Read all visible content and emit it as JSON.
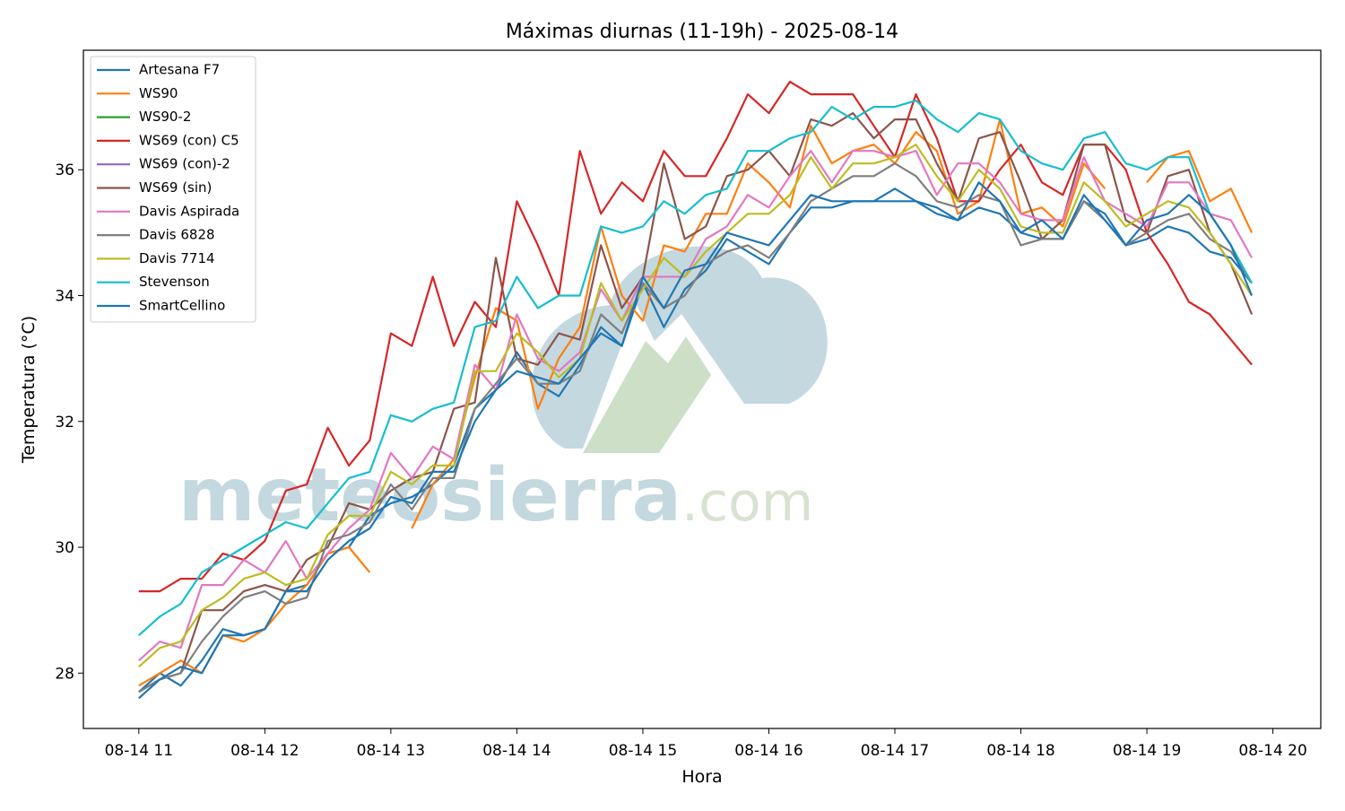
{
  "chart_data": {
    "type": "line",
    "title": "Máximas diurnas (11-19h) - 2025-08-14",
    "xlabel": "Hora",
    "ylabel": "Temperatura (°C)",
    "watermark": [
      "meteosierra",
      ".com"
    ],
    "legend": "upper left",
    "x": [
      11,
      11.167,
      11.333,
      11.5,
      11.667,
      11.833,
      12,
      12.167,
      12.333,
      12.5,
      12.667,
      12.833,
      13,
      13.167,
      13.333,
      13.5,
      13.667,
      13.833,
      14,
      14.167,
      14.333,
      14.5,
      14.667,
      14.833,
      15,
      15.167,
      15.333,
      15.5,
      15.667,
      15.833,
      16,
      16.167,
      16.333,
      16.5,
      16.667,
      16.833,
      17,
      17.167,
      17.333,
      17.5,
      17.667,
      17.833,
      18,
      18.167,
      18.333,
      18.5,
      18.667,
      18.833,
      19,
      19.167,
      19.333,
      19.5,
      19.667,
      19.833
    ],
    "xlim": [
      10.56,
      20.38
    ],
    "xticks": [
      {
        "value": 11,
        "label": "08-14 11"
      },
      {
        "value": 12,
        "label": "08-14 12"
      },
      {
        "value": 13,
        "label": "08-14 13"
      },
      {
        "value": 14,
        "label": "08-14 14"
      },
      {
        "value": 15,
        "label": "08-14 15"
      },
      {
        "value": 16,
        "label": "08-14 16"
      },
      {
        "value": 17,
        "label": "08-14 17"
      },
      {
        "value": 18,
        "label": "08-14 18"
      },
      {
        "value": 19,
        "label": "08-14 19"
      },
      {
        "value": 20,
        "label": "08-14 20"
      }
    ],
    "ylim": [
      27.12,
      37.9
    ],
    "yticks": [
      28,
      30,
      32,
      34,
      36
    ],
    "series": [
      {
        "name": "Artesana F7",
        "color": "#1f77b4",
        "values": [
          27.7,
          28.0,
          27.8,
          28.2,
          28.7,
          28.6,
          28.7,
          29.3,
          29.4,
          29.9,
          30.0,
          30.5,
          30.7,
          30.8,
          31.0,
          31.3,
          32.2,
          32.5,
          33.1,
          32.6,
          32.4,
          32.9,
          33.5,
          33.2,
          34.2,
          33.5,
          34.1,
          34.4,
          34.9,
          34.7,
          34.5,
          35.0,
          35.4,
          35.4,
          35.5,
          35.5,
          35.5,
          35.5,
          35.4,
          35.2,
          35.4,
          35.3,
          35.0,
          34.9,
          34.9,
          35.5,
          35.3,
          34.8,
          34.9,
          35.1,
          35.0,
          34.7,
          34.6,
          34.2
        ]
      },
      {
        "name": "WS90",
        "color": "#ff7f0e",
        "values": [
          27.8,
          28.0,
          28.2,
          28.0,
          28.6,
          28.5,
          28.7,
          29.1,
          29.4,
          29.9,
          30.0,
          29.6,
          null,
          30.3,
          31.0,
          31.4,
          32.7,
          33.8,
          33.6,
          32.2,
          33.0,
          33.5,
          35.1,
          34.0,
          33.6,
          34.8,
          34.7,
          35.3,
          35.3,
          36.1,
          35.8,
          35.4,
          36.7,
          36.1,
          36.3,
          36.4,
          36.1,
          36.6,
          36.3,
          35.3,
          35.5,
          36.8,
          35.3,
          35.4,
          35.1,
          36.1,
          35.7,
          null,
          35.8,
          36.2,
          36.3,
          35.5,
          35.7,
          35.0
        ]
      },
      {
        "name": "WS90-2",
        "color": "#2ca02c",
        "values": [
          null,
          null,
          null,
          null,
          null,
          null,
          null,
          null,
          null,
          null,
          null,
          null,
          null,
          null,
          null,
          null,
          null,
          null,
          null,
          null,
          null,
          null,
          null,
          null,
          null,
          null,
          null,
          null,
          null,
          null,
          null,
          null,
          null,
          null,
          null,
          null,
          null,
          null,
          null,
          null,
          null,
          null,
          null,
          null,
          null,
          null,
          null,
          null,
          null,
          null,
          null,
          null,
          null,
          null
        ]
      },
      {
        "name": "WS69 (con) C5",
        "color": "#d62728",
        "values": [
          29.3,
          29.3,
          29.5,
          29.5,
          29.9,
          29.8,
          30.1,
          30.9,
          31.0,
          31.9,
          31.3,
          31.7,
          33.4,
          33.2,
          34.3,
          33.2,
          33.9,
          33.5,
          35.5,
          34.8,
          34.0,
          36.3,
          35.3,
          35.8,
          35.5,
          36.3,
          35.9,
          35.9,
          36.5,
          37.2,
          36.9,
          37.4,
          37.2,
          37.2,
          37.2,
          36.7,
          36.2,
          37.2,
          36.5,
          35.5,
          35.5,
          36.0,
          36.4,
          35.8,
          35.6,
          36.4,
          36.4,
          36.0,
          35.0,
          34.5,
          33.9,
          33.7,
          33.3,
          32.9
        ]
      },
      {
        "name": "WS69 (con)-2",
        "color": "#9467bd",
        "values": [
          null,
          null,
          null,
          null,
          null,
          null,
          null,
          null,
          null,
          null,
          null,
          null,
          null,
          null,
          null,
          null,
          null,
          null,
          null,
          null,
          null,
          null,
          null,
          null,
          null,
          null,
          null,
          null,
          null,
          null,
          null,
          null,
          null,
          null,
          null,
          null,
          null,
          null,
          null,
          null,
          null,
          null,
          null,
          null,
          null,
          null,
          null,
          null,
          null,
          null,
          null,
          null,
          null,
          null
        ]
      },
      {
        "name": "WS69 (sin)",
        "color": "#8c564b",
        "values": [
          27.7,
          27.9,
          28.0,
          29.0,
          29.0,
          29.3,
          29.4,
          29.3,
          29.8,
          30.0,
          30.7,
          30.6,
          30.9,
          31.1,
          31.2,
          32.2,
          32.3,
          34.6,
          33.0,
          32.9,
          33.4,
          33.3,
          34.8,
          33.8,
          34.3,
          36.1,
          34.9,
          35.1,
          35.9,
          36.0,
          36.3,
          35.9,
          36.8,
          36.7,
          36.9,
          36.5,
          36.8,
          36.8,
          36.1,
          35.5,
          36.5,
          36.6,
          35.8,
          34.9,
          35.2,
          36.4,
          36.4,
          35.2,
          35.0,
          35.9,
          36.0,
          35.0,
          34.5,
          33.7
        ]
      },
      {
        "name": "Davis Aspirada",
        "color": "#e377c2",
        "values": [
          28.2,
          28.5,
          28.4,
          29.4,
          29.4,
          29.8,
          29.6,
          30.1,
          29.5,
          29.9,
          30.3,
          30.6,
          31.5,
          31.1,
          31.6,
          31.4,
          32.9,
          32.5,
          33.7,
          33.0,
          32.8,
          33.1,
          34.1,
          33.6,
          34.3,
          34.3,
          34.3,
          34.9,
          35.1,
          35.6,
          35.4,
          35.9,
          36.3,
          35.8,
          36.3,
          36.3,
          36.2,
          36.3,
          35.6,
          36.1,
          36.1,
          35.8,
          35.3,
          35.2,
          35.2,
          36.2,
          35.5,
          35.3,
          35.1,
          35.8,
          35.8,
          35.3,
          35.2,
          34.6
        ]
      },
      {
        "name": "Davis 6828",
        "color": "#7f7f7f",
        "values": [
          27.7,
          27.9,
          28.0,
          28.5,
          28.9,
          29.2,
          29.3,
          29.1,
          29.2,
          30.1,
          30.2,
          30.4,
          31.0,
          30.6,
          31.1,
          31.1,
          32.2,
          32.6,
          33.0,
          32.6,
          32.6,
          32.8,
          33.7,
          33.4,
          34.2,
          33.8,
          34.0,
          34.5,
          34.7,
          34.8,
          34.6,
          35.0,
          35.5,
          35.7,
          35.9,
          35.9,
          36.1,
          35.9,
          35.5,
          35.4,
          35.6,
          35.5,
          34.8,
          34.9,
          34.9,
          35.5,
          35.2,
          34.8,
          35.0,
          35.2,
          35.3,
          34.9,
          34.7,
          34.2
        ]
      },
      {
        "name": "Davis 7714",
        "color": "#bcbd22",
        "values": [
          28.1,
          28.4,
          28.5,
          29.0,
          29.2,
          29.5,
          29.6,
          29.4,
          29.5,
          30.2,
          30.5,
          30.5,
          31.2,
          31.0,
          31.3,
          31.3,
          32.8,
          32.8,
          33.4,
          33.1,
          32.7,
          33.0,
          34.2,
          33.6,
          34.1,
          34.6,
          34.3,
          34.7,
          35.0,
          35.3,
          35.3,
          35.6,
          36.2,
          35.7,
          36.1,
          36.1,
          36.2,
          36.4,
          35.9,
          35.5,
          36.0,
          35.7,
          35.1,
          35.0,
          35.0,
          35.8,
          35.5,
          35.1,
          35.3,
          35.5,
          35.4,
          35.0,
          34.5,
          34.0
        ]
      },
      {
        "name": "Stevenson",
        "color": "#17becf",
        "values": [
          28.6,
          28.9,
          29.1,
          29.6,
          29.8,
          30.0,
          30.2,
          30.4,
          30.3,
          30.7,
          31.1,
          31.2,
          32.1,
          32.0,
          32.2,
          32.3,
          33.5,
          33.6,
          34.3,
          33.8,
          34.0,
          34.0,
          35.1,
          35.0,
          35.1,
          35.5,
          35.3,
          35.6,
          35.7,
          36.3,
          36.3,
          36.5,
          36.6,
          37.0,
          36.8,
          37.0,
          37.0,
          37.1,
          36.8,
          36.6,
          36.9,
          36.8,
          36.3,
          36.1,
          36.0,
          36.5,
          36.6,
          36.1,
          36.0,
          36.2,
          36.2,
          35.3,
          34.8,
          34.2
        ]
      },
      {
        "name": "SmartCellino",
        "color": "#1f77b4",
        "values": [
          27.6,
          27.9,
          28.1,
          28.0,
          28.6,
          28.6,
          28.7,
          29.3,
          29.3,
          29.8,
          30.1,
          30.3,
          30.8,
          30.7,
          31.2,
          31.2,
          32.0,
          32.5,
          32.8,
          32.7,
          32.6,
          33.0,
          33.4,
          33.2,
          34.3,
          33.8,
          34.4,
          34.5,
          35.0,
          34.9,
          34.8,
          35.2,
          35.6,
          35.5,
          35.5,
          35.5,
          35.7,
          35.5,
          35.3,
          35.2,
          35.8,
          35.5,
          35.0,
          35.2,
          34.9,
          35.6,
          35.2,
          34.8,
          35.2,
          35.3,
          35.6,
          35.3,
          34.8,
          34.0
        ]
      }
    ]
  }
}
